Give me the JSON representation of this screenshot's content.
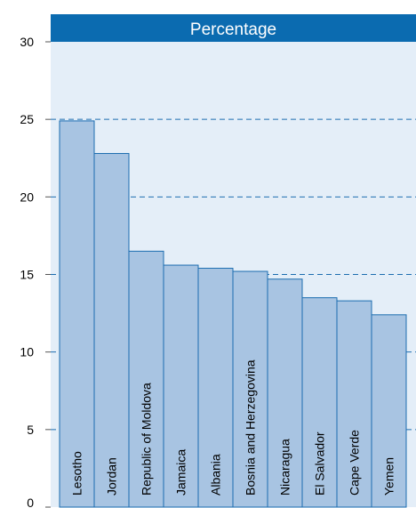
{
  "chart_data": {
    "type": "bar",
    "title": "Percentage",
    "categories": [
      "Lesotho",
      "Jordan",
      "Republic of Moldova",
      "Jamaica",
      "Albania",
      "Bosnia and Herzegovina",
      "Nicaragua",
      "El Salvador",
      "Cape Verde",
      "Yemen"
    ],
    "values": [
      24.9,
      22.8,
      16.5,
      15.6,
      15.4,
      15.2,
      14.7,
      13.5,
      13.3,
      12.4
    ],
    "ylim": [
      0,
      30
    ],
    "yticks": [
      "0",
      "5",
      "10",
      "15",
      "20",
      "25",
      "30"
    ],
    "grid": true,
    "colors": {
      "header": "#0b6bb0",
      "plot_background": "#e4eef8",
      "bar_fill": "#a8c4e2",
      "bar_stroke": "#1c6db0",
      "gridline": "#1c6db0"
    }
  }
}
